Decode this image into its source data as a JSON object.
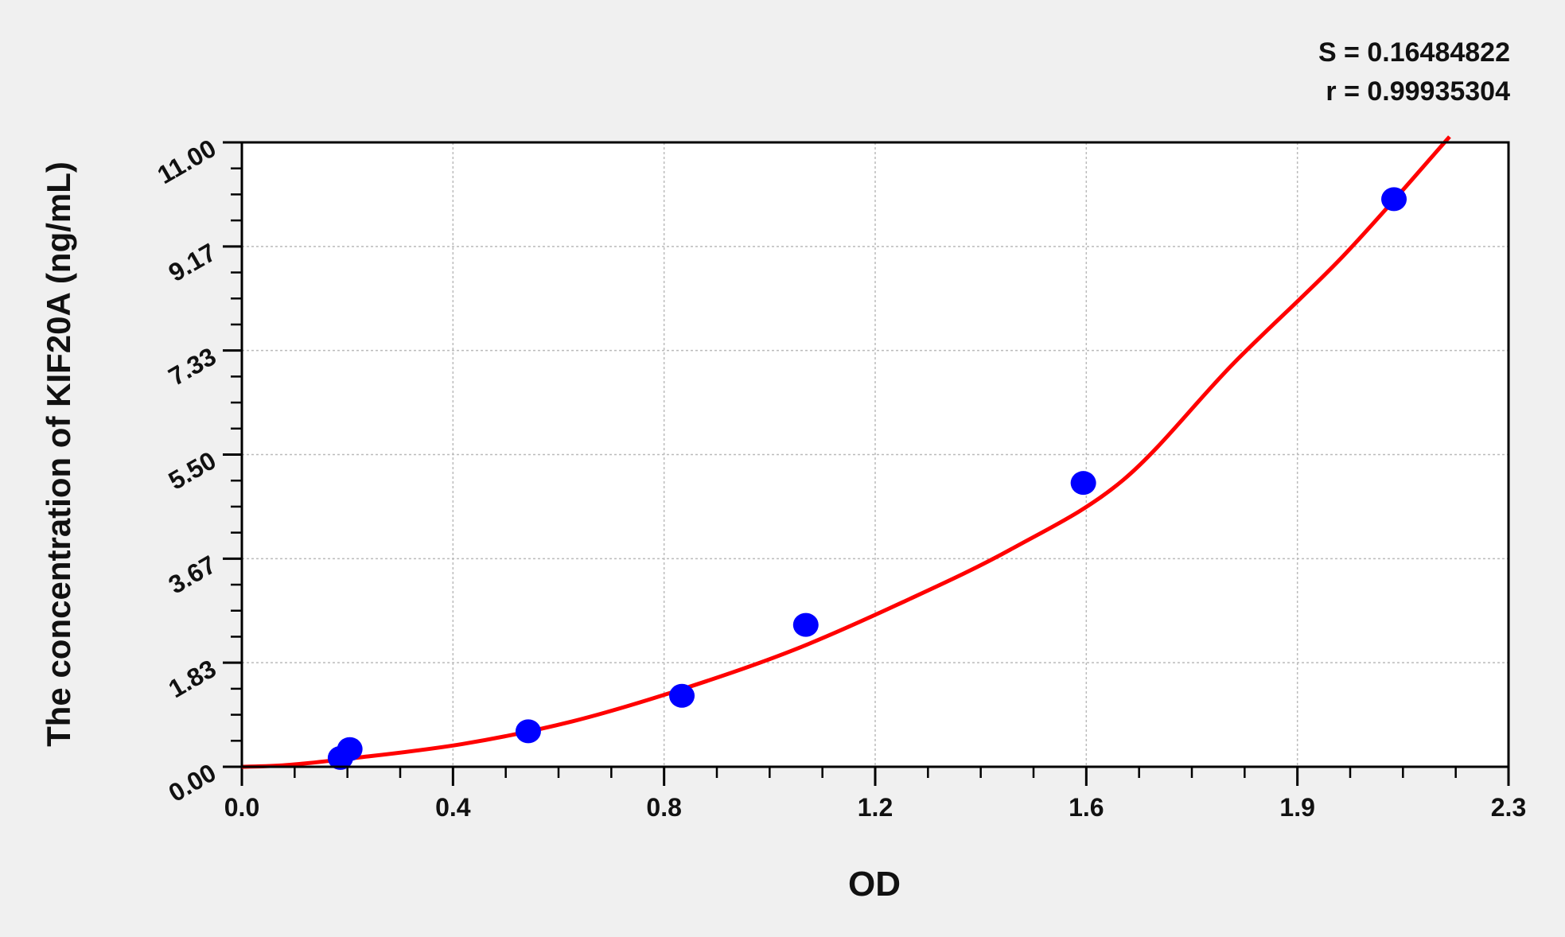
{
  "chart_data": {
    "type": "scatter",
    "title": "",
    "xlabel": "OD",
    "ylabel": "The concentration of KIF20A (ng/mL)",
    "xlim": [
      0,
      2.3
    ],
    "ylim": [
      0,
      11
    ],
    "x_ticks": [
      "0.0",
      "0.4",
      "0.8",
      "1.2",
      "1.6",
      "1.9",
      "2.3"
    ],
    "y_ticks": [
      "0.00",
      "1.83",
      "3.67",
      "5.50",
      "7.33",
      "9.17",
      "11.00"
    ],
    "grid": true,
    "stats": [
      "S = 0.16484822",
      "r = 0.99935304"
    ],
    "points": {
      "color": "#0000ff",
      "x": [
        0.179,
        0.196,
        0.52,
        0.799,
        1.024,
        1.528,
        2.092
      ],
      "y": [
        0.156,
        0.312,
        0.625,
        1.25,
        2.5,
        5.0,
        10.0
      ]
    },
    "fit_curve": {
      "color": "#ff0000",
      "x": [
        0,
        0.08,
        0.2,
        0.4,
        0.6,
        0.8,
        1.0,
        1.2,
        1.4,
        1.6,
        1.8,
        2.0,
        2.193
      ],
      "y": [
        0,
        0.03,
        0.15,
        0.4,
        0.8,
        1.37,
        2.05,
        2.9,
        3.85,
        5.05,
        7.1,
        9.0,
        11.1
      ]
    }
  }
}
